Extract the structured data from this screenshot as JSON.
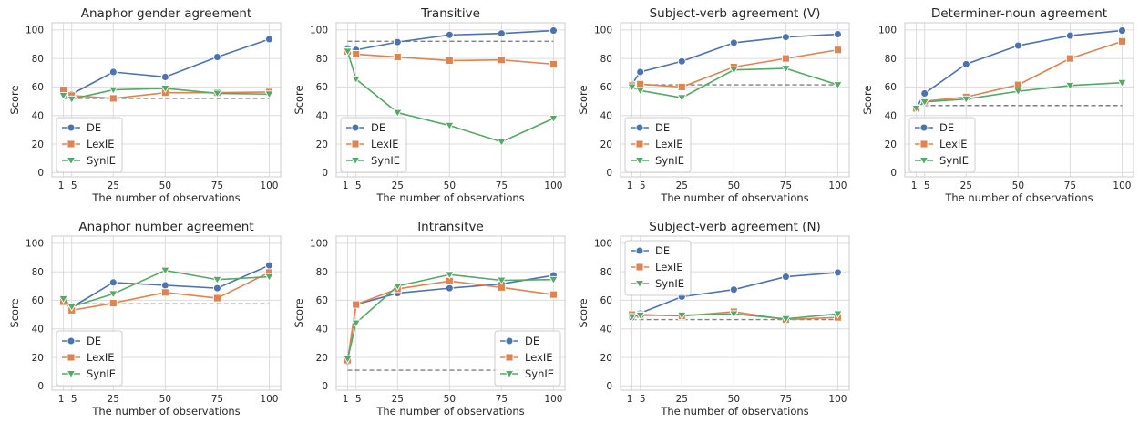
{
  "colors": {
    "DE": "#4c72b0",
    "LexIE": "#dd8452",
    "SynIE": "#55a868",
    "baseline": "#808080",
    "grid": "#dcdcdc",
    "panel_bg": "#ffffff"
  },
  "chart_data": [
    {
      "type": "line",
      "title": "Anaphor gender agreement",
      "xlabel": "The number of observations",
      "ylabel": "Score",
      "ylim": [
        -3,
        105
      ],
      "x": [
        1,
        5,
        25,
        50,
        75,
        100
      ],
      "xticks": [
        1,
        5,
        25,
        50,
        75,
        100
      ],
      "yticks": [
        0,
        20,
        40,
        60,
        80,
        100
      ],
      "series": [
        {
          "name": "DE",
          "marker": "circle",
          "values": [
            56,
            55,
            70.5,
            67,
            81,
            93.5
          ]
        },
        {
          "name": "LexIE",
          "marker": "square",
          "values": [
            58,
            54,
            52,
            56,
            56,
            56.5
          ]
        },
        {
          "name": "SynIE",
          "marker": "triangle",
          "values": [
            54,
            51.5,
            58,
            59,
            55.5,
            55
          ]
        }
      ],
      "baseline": 52,
      "legend": "lower-left"
    },
    {
      "type": "line",
      "title": "Transitive",
      "xlabel": "The number of observations",
      "ylabel": "Score",
      "ylim": [
        -3,
        105
      ],
      "x": [
        1,
        5,
        25,
        50,
        75,
        100
      ],
      "xticks": [
        1,
        5,
        25,
        50,
        75,
        100
      ],
      "yticks": [
        0,
        20,
        40,
        60,
        80,
        100
      ],
      "series": [
        {
          "name": "DE",
          "marker": "circle",
          "values": [
            87,
            86,
            91.5,
            96.5,
            97.5,
            99.5
          ]
        },
        {
          "name": "LexIE",
          "marker": "square",
          "values": [
            85,
            83,
            81,
            78.5,
            79,
            76
          ]
        },
        {
          "name": "SynIE",
          "marker": "triangle",
          "values": [
            85,
            65.5,
            42,
            33,
            21.5,
            38
          ]
        }
      ],
      "baseline": 92,
      "legend": "lower-left"
    },
    {
      "type": "line",
      "title": "Subject-verb agreement (V)",
      "xlabel": "The number of observations",
      "ylabel": "Score",
      "ylim": [
        -3,
        105
      ],
      "x": [
        1,
        5,
        25,
        50,
        75,
        100
      ],
      "xticks": [
        1,
        5,
        25,
        50,
        75,
        100
      ],
      "yticks": [
        0,
        20,
        40,
        60,
        80,
        100
      ],
      "series": [
        {
          "name": "DE",
          "marker": "circle",
          "values": [
            62,
            70.5,
            78,
            91,
            95,
            97
          ]
        },
        {
          "name": "LexIE",
          "marker": "square",
          "values": [
            61,
            62,
            60,
            74,
            80,
            86
          ]
        },
        {
          "name": "SynIE",
          "marker": "triangle",
          "values": [
            60,
            57.5,
            52.5,
            72,
            73,
            61.5
          ]
        }
      ],
      "baseline": 61.5,
      "legend": "lower-left"
    },
    {
      "type": "line",
      "title": "Determiner-noun agreement",
      "xlabel": "The number of observations",
      "ylabel": "Score",
      "ylim": [
        -3,
        105
      ],
      "x": [
        1,
        5,
        25,
        50,
        75,
        100
      ],
      "xticks": [
        1,
        5,
        25,
        50,
        75,
        100
      ],
      "yticks": [
        0,
        20,
        40,
        60,
        80,
        100
      ],
      "series": [
        {
          "name": "DE",
          "marker": "circle",
          "values": [
            45,
            55.5,
            76,
            89,
            96,
            99.5
          ]
        },
        {
          "name": "LexIE",
          "marker": "square",
          "values": [
            45,
            50,
            53,
            61.5,
            80,
            92
          ]
        },
        {
          "name": "SynIE",
          "marker": "triangle",
          "values": [
            45,
            49.5,
            51.5,
            57,
            61,
            63
          ]
        }
      ],
      "baseline": 47,
      "legend": "lower-left"
    },
    {
      "type": "line",
      "title": "Anaphor number agreement",
      "xlabel": "The number of observations",
      "ylabel": "Score",
      "ylim": [
        -3,
        105
      ],
      "x": [
        1,
        5,
        25,
        50,
        75,
        100
      ],
      "xticks": [
        1,
        5,
        25,
        50,
        75,
        100
      ],
      "yticks": [
        0,
        20,
        40,
        60,
        80,
        100
      ],
      "series": [
        {
          "name": "DE",
          "marker": "circle",
          "values": [
            60,
            55,
            72.5,
            70.5,
            68.5,
            84.5
          ]
        },
        {
          "name": "LexIE",
          "marker": "square",
          "values": [
            59,
            53,
            58,
            65.5,
            61.5,
            79.5
          ]
        },
        {
          "name": "SynIE",
          "marker": "triangle",
          "values": [
            61,
            55.5,
            64.5,
            81,
            74.5,
            76.5
          ]
        }
      ],
      "baseline": 57.5,
      "legend": "lower-left"
    },
    {
      "type": "line",
      "title": "Intransitve",
      "xlabel": "The number of observations",
      "ylabel": "Score",
      "ylim": [
        -3,
        105
      ],
      "x": [
        1,
        5,
        25,
        50,
        75,
        100
      ],
      "xticks": [
        1,
        5,
        25,
        50,
        75,
        100
      ],
      "yticks": [
        0,
        20,
        40,
        60,
        80,
        100
      ],
      "series": [
        {
          "name": "DE",
          "marker": "circle",
          "values": [
            17,
            57,
            65,
            68.5,
            71.5,
            77.5
          ]
        },
        {
          "name": "LexIE",
          "marker": "square",
          "values": [
            18,
            57,
            68,
            73.5,
            69,
            64
          ]
        },
        {
          "name": "SynIE",
          "marker": "triangle",
          "values": [
            19,
            44,
            70,
            78,
            74,
            74.5
          ]
        }
      ],
      "baseline": 11,
      "legend": "lower-right"
    },
    {
      "type": "line",
      "title": "Subject-verb agreement (N)",
      "xlabel": "The number of observations",
      "ylabel": "Score",
      "ylim": [
        -3,
        105
      ],
      "x": [
        1,
        5,
        25,
        50,
        75,
        100
      ],
      "xticks": [
        1,
        5,
        25,
        50,
        75,
        100
      ],
      "yticks": [
        0,
        20,
        40,
        60,
        80,
        100
      ],
      "series": [
        {
          "name": "DE",
          "marker": "circle",
          "values": [
            48,
            51,
            62.5,
            67.5,
            76.5,
            79.5
          ]
        },
        {
          "name": "LexIE",
          "marker": "square",
          "values": [
            50,
            50,
            49,
            52,
            46.5,
            48
          ]
        },
        {
          "name": "SynIE",
          "marker": "triangle",
          "values": [
            48.5,
            49.5,
            49.5,
            50.5,
            47,
            50.5
          ]
        }
      ],
      "baseline": 46.5,
      "legend": "upper-left"
    }
  ]
}
